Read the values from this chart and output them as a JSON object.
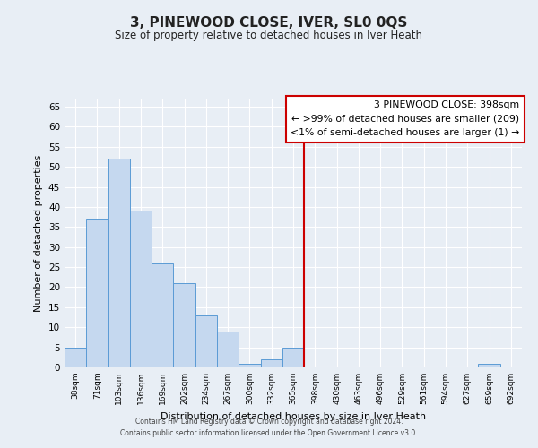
{
  "title": "3, PINEWOOD CLOSE, IVER, SL0 0QS",
  "subtitle": "Size of property relative to detached houses in Iver Heath",
  "xlabel": "Distribution of detached houses by size in Iver Heath",
  "ylabel": "Number of detached properties",
  "bar_labels": [
    "38sqm",
    "71sqm",
    "103sqm",
    "136sqm",
    "169sqm",
    "202sqm",
    "234sqm",
    "267sqm",
    "300sqm",
    "332sqm",
    "365sqm",
    "398sqm",
    "430sqm",
    "463sqm",
    "496sqm",
    "529sqm",
    "561sqm",
    "594sqm",
    "627sqm",
    "659sqm",
    "692sqm"
  ],
  "bar_values": [
    5,
    37,
    52,
    39,
    26,
    21,
    13,
    9,
    1,
    2,
    5,
    0,
    0,
    0,
    0,
    0,
    0,
    0,
    0,
    1,
    0
  ],
  "bar_color": "#c5d8ef",
  "bar_edge_color": "#5b9bd5",
  "vline_after_index": 10,
  "vline_color": "#cc0000",
  "ylim": [
    0,
    67
  ],
  "yticks": [
    0,
    5,
    10,
    15,
    20,
    25,
    30,
    35,
    40,
    45,
    50,
    55,
    60,
    65
  ],
  "legend_title": "3 PINEWOOD CLOSE: 398sqm",
  "legend_line1": "← >99% of detached houses are smaller (209)",
  "legend_line2": "<1% of semi-detached houses are larger (1) →",
  "legend_box_facecolor": "#ffffff",
  "legend_border_color": "#cc0000",
  "footer_line1": "Contains HM Land Registry data © Crown copyright and database right 2024.",
  "footer_line2": "Contains public sector information licensed under the Open Government Licence v3.0.",
  "bg_color": "#e8eef5",
  "plot_bg_color": "#e8eef5",
  "grid_color": "#ffffff"
}
